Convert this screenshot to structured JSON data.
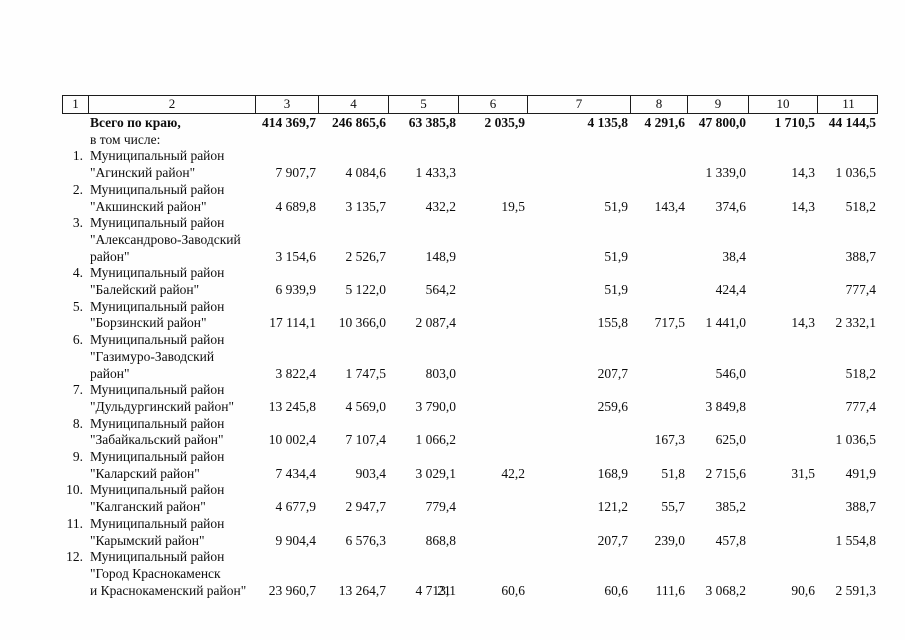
{
  "page": {
    "number": "21"
  },
  "table": {
    "header_cols": [
      "1",
      "2",
      "3",
      "4",
      "5",
      "6",
      "7",
      "8",
      "9",
      "10",
      "11"
    ],
    "total_row": {
      "title": "Всего по краю,",
      "subtitle": "в том числе:",
      "values": [
        "414 369,7",
        "246 865,6",
        "63 385,8",
        "2 035,9",
        "4 135,8",
        "4 291,6",
        "47 800,0",
        "1 710,5",
        "44 144,5"
      ]
    },
    "rows": [
      {
        "num": "1.",
        "name_lines": [
          "Муниципальный район",
          "\"Агинский район\""
        ],
        "values": [
          "7 907,7",
          "4 084,6",
          "1 433,3",
          "",
          "",
          "",
          "1 339,0",
          "14,3",
          "1 036,5"
        ]
      },
      {
        "num": "2.",
        "name_lines": [
          "Муниципальный район",
          "\"Акшинский район\""
        ],
        "values": [
          "4 689,8",
          "3 135,7",
          "432,2",
          "19,5",
          "51,9",
          "143,4",
          "374,6",
          "14,3",
          "518,2"
        ]
      },
      {
        "num": "3.",
        "name_lines": [
          "Муниципальный район",
          "\"Александрово-Заводский",
          "район\""
        ],
        "values": [
          "3 154,6",
          "2 526,7",
          "148,9",
          "",
          "51,9",
          "",
          "38,4",
          "",
          "388,7"
        ]
      },
      {
        "num": "4.",
        "name_lines": [
          "Муниципальный район",
          "\"Балейский район\""
        ],
        "values": [
          "6 939,9",
          "5 122,0",
          "564,2",
          "",
          "51,9",
          "",
          "424,4",
          "",
          "777,4"
        ]
      },
      {
        "num": "5.",
        "name_lines": [
          "Муниципальный район",
          "\"Борзинский район\""
        ],
        "values": [
          "17 114,1",
          "10 366,0",
          "2 087,4",
          "",
          "155,8",
          "717,5",
          "1 441,0",
          "14,3",
          "2 332,1"
        ]
      },
      {
        "num": "6.",
        "name_lines": [
          "Муниципальный район",
          "\"Газимуро-Заводский",
          "район\""
        ],
        "values": [
          "3 822,4",
          "1 747,5",
          "803,0",
          "",
          "207,7",
          "",
          "546,0",
          "",
          "518,2"
        ]
      },
      {
        "num": "7.",
        "name_lines": [
          "Муниципальный район",
          "\"Дульдургинский район\""
        ],
        "values": [
          "13 245,8",
          "4 569,0",
          "3 790,0",
          "",
          "259,6",
          "",
          "3 849,8",
          "",
          "777,4"
        ]
      },
      {
        "num": "8.",
        "name_lines": [
          "Муниципальный район",
          "\"Забайкальский район\""
        ],
        "values": [
          "10 002,4",
          "7 107,4",
          "1 066,2",
          "",
          "",
          "167,3",
          "625,0",
          "",
          "1 036,5"
        ]
      },
      {
        "num": "9.",
        "name_lines": [
          "Муниципальный район",
          "\"Каларский район\""
        ],
        "values": [
          "7 434,4",
          "903,4",
          "3 029,1",
          "42,2",
          "168,9",
          "51,8",
          "2 715,6",
          "31,5",
          "491,9"
        ]
      },
      {
        "num": "10.",
        "name_lines": [
          "Муниципальный район",
          "\"Калганский район\""
        ],
        "values": [
          "4 677,9",
          "2 947,7",
          "779,4",
          "",
          "121,2",
          "55,7",
          "385,2",
          "",
          "388,7"
        ]
      },
      {
        "num": "11.",
        "name_lines": [
          "Муниципальный район",
          "\"Карымский район\""
        ],
        "values": [
          "9 904,4",
          "6 576,3",
          "868,8",
          "",
          "207,7",
          "239,0",
          "457,8",
          "",
          "1 554,8"
        ]
      },
      {
        "num": "12.",
        "name_lines": [
          "Муниципальный район",
          "\"Город Краснокаменск",
          "и Краснокаменский район\""
        ],
        "values": [
          "23 960,7",
          "13 264,7",
          "4 713,1",
          "60,6",
          "60,6",
          "111,6",
          "3 068,2",
          "90,6",
          "2 591,3"
        ]
      }
    ]
  }
}
